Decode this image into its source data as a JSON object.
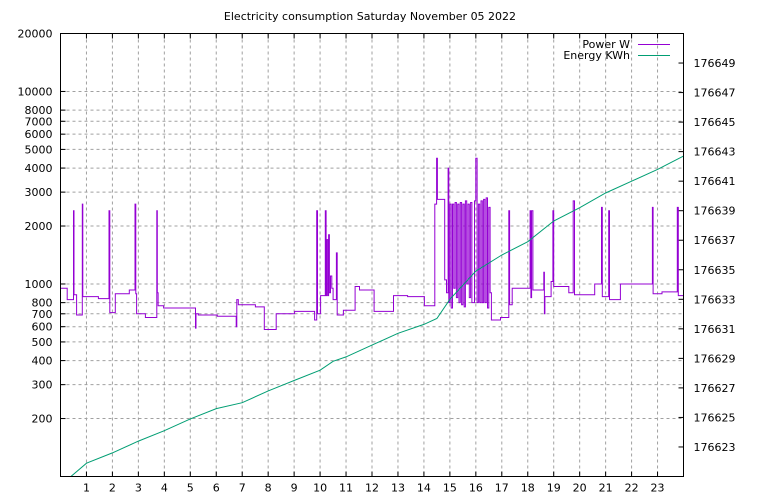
{
  "chart_data": {
    "type": "line",
    "title": "Electricity consumption Saturday November 05 2022",
    "xlabel": "",
    "ylabel": "",
    "xlim": [
      0,
      24
    ],
    "ylim": [
      100,
      20000
    ],
    "yscale": "log",
    "y2lim": [
      176621,
      176651
    ],
    "grid": true,
    "legend_position": "top-right",
    "x_ticks": [
      "1",
      "2",
      "3",
      "4",
      "5",
      "6",
      "7",
      "8",
      "9",
      "10",
      "11",
      "12",
      "13",
      "14",
      "15",
      "16",
      "17",
      "18",
      "19",
      "20",
      "21",
      "22",
      "23"
    ],
    "y_ticks": [
      200,
      300,
      400,
      500,
      600,
      700,
      800,
      1000,
      2000,
      3000,
      4000,
      5000,
      6000,
      7000,
      8000,
      10000,
      20000
    ],
    "y_tick_labels": [
      "200",
      "300",
      "400",
      "500",
      "600",
      "700",
      "800",
      "1000",
      "2000",
      "3000",
      "4000",
      "5000",
      "6000",
      "7000",
      "8000",
      "10000",
      "20000"
    ],
    "y2_ticks": [
      176623,
      176625,
      176627,
      176629,
      176631,
      176633,
      176635,
      176637,
      176639,
      176641,
      176643,
      176645,
      176647,
      176649
    ],
    "y2_tick_labels": [
      "176623",
      "176625",
      "176627",
      "176629",
      "176631",
      "176633",
      "176635",
      "176637",
      "176639",
      "176641",
      "176643",
      "176645",
      "176647",
      "176649"
    ],
    "series": [
      {
        "name": "Power W",
        "axis": "y",
        "style": "steps",
        "color": "#9400d3",
        "points": [
          [
            0,
            950
          ],
          [
            0.26,
            830
          ],
          [
            0.5,
            2400
          ],
          [
            0.52,
            880
          ],
          [
            0.62,
            690
          ],
          [
            0.84,
            2600
          ],
          [
            0.86,
            860
          ],
          [
            1.46,
            840
          ],
          [
            1.87,
            2400
          ],
          [
            1.9,
            710
          ],
          [
            2.11,
            890
          ],
          [
            2.65,
            930
          ],
          [
            2.87,
            2600
          ],
          [
            2.9,
            890
          ],
          [
            2.93,
            700
          ],
          [
            3.27,
            670
          ],
          [
            3.71,
            2400
          ],
          [
            3.73,
            900
          ],
          [
            3.76,
            770
          ],
          [
            3.97,
            750
          ],
          [
            5.2,
            590
          ],
          [
            5.22,
            700
          ],
          [
            5.31,
            690
          ],
          [
            6.04,
            680
          ],
          [
            6.77,
            600
          ],
          [
            6.79,
            830
          ],
          [
            6.85,
            780
          ],
          [
            7.51,
            760
          ],
          [
            7.85,
            580
          ],
          [
            8.31,
            700
          ],
          [
            9.02,
            720
          ],
          [
            9.79,
            650
          ],
          [
            9.87,
            2400
          ],
          [
            9.9,
            700
          ],
          [
            10.02,
            870
          ],
          [
            10.2,
            2400
          ],
          [
            10.23,
            870
          ],
          [
            10.26,
            1700
          ],
          [
            10.3,
            870
          ],
          [
            10.33,
            1800
          ],
          [
            10.36,
            900
          ],
          [
            10.4,
            1100
          ],
          [
            10.45,
            950
          ],
          [
            10.5,
            830
          ],
          [
            10.63,
            1450
          ],
          [
            10.66,
            690
          ],
          [
            10.9,
            730
          ],
          [
            11.35,
            970
          ],
          [
            11.52,
            930
          ],
          [
            12.08,
            720
          ],
          [
            12.83,
            870
          ],
          [
            13.37,
            860
          ],
          [
            14.02,
            770
          ],
          [
            14.42,
            2600
          ],
          [
            14.49,
            4500
          ],
          [
            14.52,
            2750
          ],
          [
            14.8,
            1050
          ],
          [
            14.87,
            900
          ],
          [
            14.93,
            4000
          ],
          [
            14.96,
            800
          ],
          [
            15.0,
            2600
          ],
          [
            15.05,
            750
          ],
          [
            15.1,
            2600
          ],
          [
            15.15,
            950
          ],
          [
            15.2,
            2650
          ],
          [
            15.25,
            850
          ],
          [
            15.3,
            2600
          ],
          [
            15.35,
            800
          ],
          [
            15.4,
            2650
          ],
          [
            15.45,
            780
          ],
          [
            15.5,
            2600
          ],
          [
            15.55,
            760
          ],
          [
            15.6,
            2700
          ],
          [
            15.65,
            1000
          ],
          [
            15.7,
            2600
          ],
          [
            15.75,
            850
          ],
          [
            15.8,
            2650
          ],
          [
            15.85,
            800
          ],
          [
            15.95,
            2700
          ],
          [
            16.0,
            4500
          ],
          [
            16.05,
            800
          ],
          [
            16.1,
            2600
          ],
          [
            16.15,
            800
          ],
          [
            16.2,
            2700
          ],
          [
            16.25,
            800
          ],
          [
            16.3,
            2750
          ],
          [
            16.35,
            800
          ],
          [
            16.4,
            2800
          ],
          [
            16.45,
            750
          ],
          [
            16.5,
            2500
          ],
          [
            16.55,
            900
          ],
          [
            16.6,
            650
          ],
          [
            16.95,
            670
          ],
          [
            17.27,
            2400
          ],
          [
            17.3,
            780
          ],
          [
            17.4,
            950
          ],
          [
            18.09,
            2400
          ],
          [
            18.12,
            850
          ],
          [
            18.15,
            2400
          ],
          [
            18.2,
            930
          ],
          [
            18.62,
            1150
          ],
          [
            18.64,
            700
          ],
          [
            18.66,
            860
          ],
          [
            18.9,
            1030
          ],
          [
            18.97,
            2400
          ],
          [
            19.0,
            970
          ],
          [
            19.58,
            900
          ],
          [
            19.75,
            2700
          ],
          [
            19.8,
            880
          ],
          [
            20.58,
            1000
          ],
          [
            20.84,
            2500
          ],
          [
            20.87,
            860
          ],
          [
            21.12,
            2400
          ],
          [
            21.15,
            830
          ],
          [
            21.57,
            1000
          ],
          [
            22.8,
            2500
          ],
          [
            22.83,
            890
          ],
          [
            23.17,
            910
          ],
          [
            23.76,
            2500
          ],
          [
            23.8,
            870
          ],
          [
            24,
            870
          ]
        ]
      },
      {
        "name": "Energy KWh",
        "axis": "y2",
        "style": "lines",
        "color": "#009e73",
        "points": [
          [
            0.4,
            176621.0
          ],
          [
            1,
            176621.9
          ],
          [
            2,
            176622.6
          ],
          [
            3,
            176623.4
          ],
          [
            4,
            176624.1
          ],
          [
            5,
            176624.9
          ],
          [
            6,
            176625.6
          ],
          [
            7,
            176626.0
          ],
          [
            8,
            176626.8
          ],
          [
            9,
            176627.5
          ],
          [
            10,
            176628.2
          ],
          [
            10.5,
            176628.8
          ],
          [
            11,
            176629.1
          ],
          [
            12,
            176629.9
          ],
          [
            13,
            176630.7
          ],
          [
            14,
            176631.3
          ],
          [
            14.5,
            176631.7
          ],
          [
            15,
            176633.0
          ],
          [
            16,
            176634.9
          ],
          [
            17,
            176636.0
          ],
          [
            18,
            176636.9
          ],
          [
            19,
            176638.3
          ],
          [
            20,
            176639.2
          ],
          [
            21,
            176640.2
          ],
          [
            22,
            176641.0
          ],
          [
            23,
            176641.8
          ],
          [
            24,
            176642.7
          ]
        ]
      }
    ]
  }
}
